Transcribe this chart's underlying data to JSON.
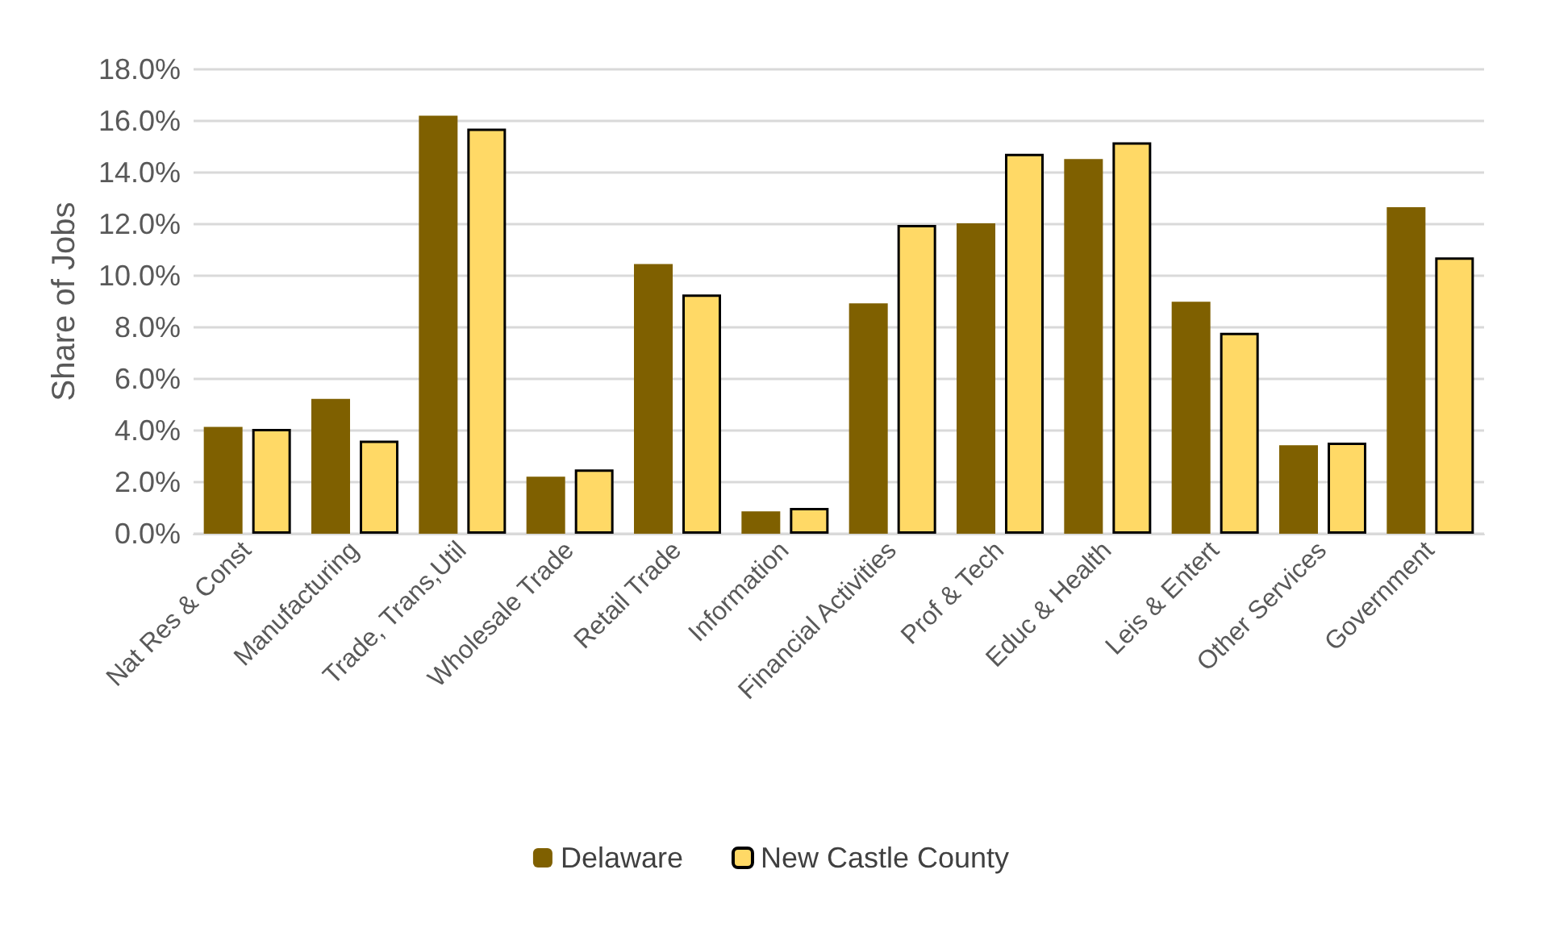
{
  "chart_data": {
    "type": "bar",
    "ylabel": "Share of Jobs",
    "categories": [
      "Nat Res & Const",
      "Manufacturing",
      "Trade, Trans,Util",
      "Wholesale Trade",
      "Retail Trade",
      "Information",
      "Financial Activities",
      "Prof & Tech",
      "Educ & Health",
      "Leis & Entert",
      "Other Services",
      "Government"
    ],
    "series": [
      {
        "name": "Delaware",
        "color": "#7f6000",
        "values": [
          4.14,
          5.23,
          16.2,
          2.21,
          10.45,
          0.87,
          8.93,
          12.03,
          14.52,
          8.99,
          3.43,
          12.66
        ]
      },
      {
        "name": "New Castle County",
        "color": "#ffd966",
        "values": [
          4.06,
          3.61,
          15.7,
          2.49,
          9.27,
          1.0,
          11.97,
          14.73,
          15.17,
          7.79,
          3.53,
          10.71
        ]
      }
    ],
    "ylim": [
      0,
      18
    ],
    "yticks": [
      {
        "value": 0,
        "label": "0.0%"
      },
      {
        "value": 2,
        "label": "2.0%"
      },
      {
        "value": 4,
        "label": "4.0%"
      },
      {
        "value": 6,
        "label": "6.0%"
      },
      {
        "value": 8,
        "label": "8.0%"
      },
      {
        "value": 10,
        "label": "10.0%"
      },
      {
        "value": 12,
        "label": "12.0%"
      },
      {
        "value": 14,
        "label": "14.0%"
      },
      {
        "value": 16,
        "label": "16.0%"
      },
      {
        "value": 18,
        "label": "18.0%"
      }
    ],
    "grid": "y",
    "legend": "bottom"
  }
}
